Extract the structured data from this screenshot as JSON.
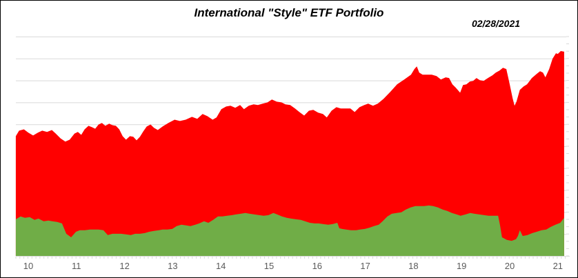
{
  "header": {
    "title": "International \"Style\" ETF Portfolio",
    "date": "02/28/2021"
  },
  "chart_data": {
    "type": "area",
    "title": "International \"Style\" ETF Portfolio",
    "annotation": "02/28/2021",
    "xlabel": "",
    "ylabel": "",
    "x_tick_labels": [
      "10",
      "11",
      "12",
      "13",
      "14",
      "15",
      "16",
      "17",
      "18",
      "19",
      "20",
      "21"
    ],
    "x_tick_values": [
      10,
      11,
      12,
      13,
      14,
      15,
      16,
      17,
      18,
      19,
      20,
      21
    ],
    "x_range": [
      9.74,
      21.16
    ],
    "ylim": [
      0,
      100
    ],
    "y_axis_labels_visible": false,
    "gridlines": "horizontal",
    "gridline_divisions": 10,
    "legend": "none",
    "minor_tick_interval_years": 0.0833,
    "style": {
      "red_series_color": "#FF0000",
      "green_series_color": "#70AD47",
      "gridline_color": "#D9D9D9",
      "tick_color": "#D9D9D9",
      "axis_label_color": "#595959",
      "background_color": "#FFFFFF",
      "border_color": "#000000"
    },
    "series": [
      {
        "name": "red-series",
        "color": "#FF0000",
        "points": [
          [
            9.74,
            54.6
          ],
          [
            9.81,
            57.1
          ],
          [
            9.91,
            57.7
          ],
          [
            10.0,
            56.2
          ],
          [
            10.1,
            54.9
          ],
          [
            10.2,
            56.2
          ],
          [
            10.29,
            57.1
          ],
          [
            10.39,
            56.5
          ],
          [
            10.49,
            57.4
          ],
          [
            10.57,
            55.8
          ],
          [
            10.67,
            53.6
          ],
          [
            10.77,
            52.1
          ],
          [
            10.86,
            53.0
          ],
          [
            10.96,
            55.8
          ],
          [
            11.03,
            56.5
          ],
          [
            11.1,
            55.2
          ],
          [
            11.17,
            57.7
          ],
          [
            11.25,
            59.3
          ],
          [
            11.32,
            58.7
          ],
          [
            11.39,
            58.0
          ],
          [
            11.46,
            59.9
          ],
          [
            11.53,
            60.6
          ],
          [
            11.6,
            59.3
          ],
          [
            11.68,
            60.3
          ],
          [
            11.75,
            59.6
          ],
          [
            11.82,
            59.3
          ],
          [
            11.89,
            57.7
          ],
          [
            11.96,
            54.6
          ],
          [
            12.03,
            53.0
          ],
          [
            12.11,
            54.6
          ],
          [
            12.18,
            54.3
          ],
          [
            12.25,
            52.7
          ],
          [
            12.32,
            54.3
          ],
          [
            12.39,
            56.8
          ],
          [
            12.46,
            59.0
          ],
          [
            12.54,
            59.9
          ],
          [
            12.61,
            58.4
          ],
          [
            12.69,
            57.4
          ],
          [
            12.79,
            59.0
          ],
          [
            12.91,
            60.6
          ],
          [
            13.04,
            62.1
          ],
          [
            13.15,
            61.5
          ],
          [
            13.27,
            62.1
          ],
          [
            13.4,
            63.4
          ],
          [
            13.51,
            62.5
          ],
          [
            13.62,
            64.7
          ],
          [
            13.72,
            63.7
          ],
          [
            13.83,
            62.1
          ],
          [
            13.91,
            63.1
          ],
          [
            14.01,
            66.9
          ],
          [
            14.11,
            68.1
          ],
          [
            14.2,
            68.5
          ],
          [
            14.3,
            67.5
          ],
          [
            14.4,
            68.8
          ],
          [
            14.48,
            66.9
          ],
          [
            14.58,
            68.5
          ],
          [
            14.68,
            69.1
          ],
          [
            14.77,
            68.8
          ],
          [
            14.87,
            69.4
          ],
          [
            14.97,
            70.0
          ],
          [
            15.06,
            71.3
          ],
          [
            15.16,
            70.3
          ],
          [
            15.26,
            70.0
          ],
          [
            15.34,
            69.1
          ],
          [
            15.44,
            68.8
          ],
          [
            15.54,
            67.2
          ],
          [
            15.63,
            65.6
          ],
          [
            15.73,
            64.0
          ],
          [
            15.83,
            66.2
          ],
          [
            15.92,
            66.6
          ],
          [
            16.02,
            65.3
          ],
          [
            16.12,
            64.7
          ],
          [
            16.2,
            63.1
          ],
          [
            16.3,
            66.2
          ],
          [
            16.4,
            67.8
          ],
          [
            16.49,
            67.2
          ],
          [
            16.59,
            67.2
          ],
          [
            16.69,
            67.2
          ],
          [
            16.78,
            65.6
          ],
          [
            16.88,
            67.8
          ],
          [
            16.98,
            68.8
          ],
          [
            17.06,
            69.4
          ],
          [
            17.16,
            68.5
          ],
          [
            17.26,
            69.4
          ],
          [
            17.38,
            71.6
          ],
          [
            17.52,
            74.8
          ],
          [
            17.66,
            78.2
          ],
          [
            17.81,
            80.4
          ],
          [
            17.95,
            82.6
          ],
          [
            18.02,
            85.2
          ],
          [
            18.07,
            86.4
          ],
          [
            18.12,
            83.6
          ],
          [
            18.19,
            82.6
          ],
          [
            18.28,
            82.6
          ],
          [
            18.38,
            82.6
          ],
          [
            18.48,
            82.0
          ],
          [
            18.57,
            80.4
          ],
          [
            18.67,
            81.4
          ],
          [
            18.74,
            81.1
          ],
          [
            18.81,
            78.2
          ],
          [
            18.88,
            76.7
          ],
          [
            18.97,
            74.4
          ],
          [
            19.03,
            77.9
          ],
          [
            19.1,
            78.2
          ],
          [
            19.17,
            79.5
          ],
          [
            19.24,
            79.8
          ],
          [
            19.31,
            81.1
          ],
          [
            19.38,
            80.1
          ],
          [
            19.46,
            79.8
          ],
          [
            19.5,
            80.4
          ],
          [
            19.57,
            81.4
          ],
          [
            19.64,
            82.3
          ],
          [
            19.71,
            83.6
          ],
          [
            19.79,
            84.5
          ],
          [
            19.86,
            85.8
          ],
          [
            19.93,
            85.2
          ],
          [
            20.0,
            78.2
          ],
          [
            20.06,
            71.9
          ],
          [
            20.1,
            68.5
          ],
          [
            20.14,
            70.3
          ],
          [
            20.21,
            75.7
          ],
          [
            20.29,
            77.3
          ],
          [
            20.36,
            78.2
          ],
          [
            20.46,
            81.1
          ],
          [
            20.56,
            83.0
          ],
          [
            20.63,
            84.2
          ],
          [
            20.69,
            83.6
          ],
          [
            20.74,
            81.4
          ],
          [
            20.82,
            85.2
          ],
          [
            20.89,
            89.9
          ],
          [
            20.96,
            92.4
          ],
          [
            21.0,
            92.1
          ],
          [
            21.06,
            93.4
          ],
          [
            21.13,
            93.1
          ]
        ]
      },
      {
        "name": "green-series",
        "color": "#70AD47",
        "points": [
          [
            9.74,
            16.7
          ],
          [
            9.84,
            18.0
          ],
          [
            9.93,
            17.4
          ],
          [
            10.03,
            17.7
          ],
          [
            10.13,
            16.4
          ],
          [
            10.21,
            17.0
          ],
          [
            10.32,
            15.8
          ],
          [
            10.42,
            16.1
          ],
          [
            10.5,
            15.8
          ],
          [
            10.6,
            15.5
          ],
          [
            10.7,
            14.8
          ],
          [
            10.79,
            10.1
          ],
          [
            10.89,
            8.5
          ],
          [
            10.99,
            11.0
          ],
          [
            11.07,
            11.7
          ],
          [
            11.17,
            11.7
          ],
          [
            11.28,
            12.0
          ],
          [
            11.36,
            12.0
          ],
          [
            11.46,
            12.0
          ],
          [
            11.56,
            11.7
          ],
          [
            11.65,
            9.5
          ],
          [
            11.75,
            10.1
          ],
          [
            11.85,
            10.1
          ],
          [
            11.93,
            10.1
          ],
          [
            12.03,
            9.8
          ],
          [
            12.13,
            9.5
          ],
          [
            12.22,
            10.1
          ],
          [
            12.32,
            10.1
          ],
          [
            12.42,
            10.4
          ],
          [
            12.51,
            11.0
          ],
          [
            12.61,
            11.4
          ],
          [
            12.71,
            11.7
          ],
          [
            12.79,
            12.0
          ],
          [
            12.89,
            12.0
          ],
          [
            12.99,
            12.3
          ],
          [
            13.08,
            13.6
          ],
          [
            13.18,
            14.2
          ],
          [
            13.28,
            13.9
          ],
          [
            13.37,
            13.6
          ],
          [
            13.47,
            14.2
          ],
          [
            13.55,
            14.8
          ],
          [
            13.65,
            15.8
          ],
          [
            13.74,
            15.1
          ],
          [
            13.84,
            16.4
          ],
          [
            13.94,
            18.0
          ],
          [
            14.03,
            18.0
          ],
          [
            14.13,
            18.3
          ],
          [
            14.23,
            18.6
          ],
          [
            14.31,
            18.9
          ],
          [
            14.41,
            19.2
          ],
          [
            14.51,
            19.6
          ],
          [
            14.6,
            19.2
          ],
          [
            14.7,
            18.9
          ],
          [
            14.8,
            18.6
          ],
          [
            14.89,
            18.3
          ],
          [
            14.99,
            18.6
          ],
          [
            15.09,
            19.6
          ],
          [
            15.17,
            18.9
          ],
          [
            15.27,
            18.0
          ],
          [
            15.37,
            17.4
          ],
          [
            15.46,
            17.0
          ],
          [
            15.56,
            16.7
          ],
          [
            15.66,
            16.4
          ],
          [
            15.75,
            15.8
          ],
          [
            15.85,
            15.1
          ],
          [
            15.95,
            14.8
          ],
          [
            16.03,
            14.8
          ],
          [
            16.13,
            14.5
          ],
          [
            16.23,
            14.2
          ],
          [
            16.32,
            14.5
          ],
          [
            16.42,
            15.1
          ],
          [
            16.46,
            12.6
          ],
          [
            16.52,
            12.3
          ],
          [
            16.6,
            12.0
          ],
          [
            16.71,
            11.7
          ],
          [
            16.81,
            11.7
          ],
          [
            16.89,
            12.0
          ],
          [
            16.99,
            12.3
          ],
          [
            17.09,
            12.9
          ],
          [
            17.18,
            13.6
          ],
          [
            17.28,
            14.2
          ],
          [
            17.36,
            15.8
          ],
          [
            17.46,
            18.0
          ],
          [
            17.55,
            19.2
          ],
          [
            17.65,
            19.6
          ],
          [
            17.75,
            19.9
          ],
          [
            17.84,
            21.1
          ],
          [
            17.94,
            22.1
          ],
          [
            18.04,
            22.7
          ],
          [
            18.12,
            22.7
          ],
          [
            18.22,
            22.7
          ],
          [
            18.32,
            23.0
          ],
          [
            18.41,
            22.7
          ],
          [
            18.51,
            22.1
          ],
          [
            18.61,
            21.1
          ],
          [
            18.7,
            20.5
          ],
          [
            18.8,
            19.6
          ],
          [
            18.9,
            18.9
          ],
          [
            18.98,
            18.3
          ],
          [
            19.08,
            18.9
          ],
          [
            19.18,
            19.6
          ],
          [
            19.27,
            19.2
          ],
          [
            19.37,
            18.9
          ],
          [
            19.47,
            18.6
          ],
          [
            19.56,
            18.3
          ],
          [
            19.66,
            18.3
          ],
          [
            19.76,
            18.3
          ],
          [
            19.8,
            13.9
          ],
          [
            19.84,
            8.5
          ],
          [
            19.94,
            7.3
          ],
          [
            20.04,
            6.9
          ],
          [
            20.13,
            7.6
          ],
          [
            20.17,
            9.1
          ],
          [
            20.21,
            11.7
          ],
          [
            20.27,
            9.1
          ],
          [
            20.37,
            9.5
          ],
          [
            20.47,
            10.4
          ],
          [
            20.56,
            11.0
          ],
          [
            20.66,
            11.7
          ],
          [
            20.76,
            12.0
          ],
          [
            20.85,
            13.2
          ],
          [
            20.95,
            14.2
          ],
          [
            21.05,
            15.1
          ],
          [
            21.13,
            17.4
          ]
        ]
      }
    ]
  }
}
